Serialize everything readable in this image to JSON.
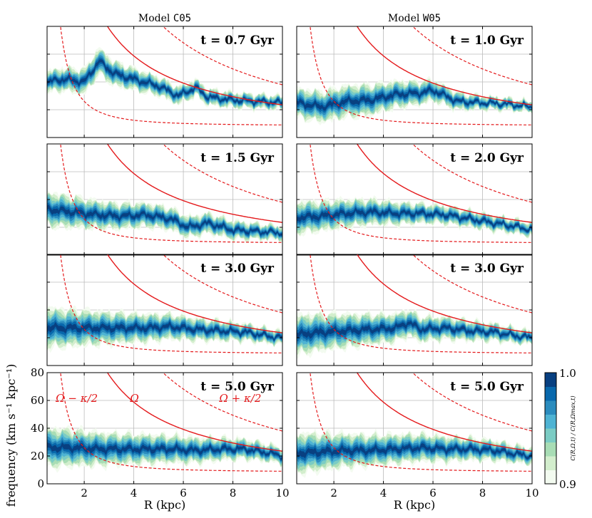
{
  "chart_data": {
    "type": "heatmap",
    "description_columns": [
      {
        "title_prefix": "Model ",
        "model": "C05"
      },
      {
        "title_prefix": "Model ",
        "model": "W05"
      }
    ],
    "xlabel": "R  (kpc)",
    "ylabel": "frequency (km s⁻¹ kpc⁻¹)",
    "xlim": [
      0.5,
      10
    ],
    "ylim": [
      0,
      80
    ],
    "xticks": [
      "2",
      "4",
      "6",
      "8",
      "10"
    ],
    "yticks": [
      "0",
      "20",
      "40",
      "60",
      "80"
    ],
    "colorbar": {
      "label": "C(R,Ω,t) / C(R,Ωmax,t)",
      "min_label": "0.9",
      "max_label": "1.0",
      "colors": [
        "#f3fbf0",
        "#d3eecd",
        "#a8ddb5",
        "#7bccc4",
        "#4eb3d3",
        "#2b8cbe",
        "#0868ac",
        "#084081"
      ]
    },
    "curve_colors": {
      "omega": "#e41a1c",
      "ilr_olr": "#e41a1c"
    },
    "annotations": {
      "ilr": "Ω − κ/2",
      "omega": "Ω",
      "olr": "Ω + κ/2"
    },
    "panels": [
      {
        "col": 0,
        "row": 0,
        "label": "t = 0.7 Gyr",
        "ridge": [
          [
            0.5,
            40
          ],
          [
            1.2,
            42
          ],
          [
            2.0,
            40
          ],
          [
            2.6,
            55
          ],
          [
            3.2,
            46
          ],
          [
            4.0,
            42
          ],
          [
            5.0,
            37
          ],
          [
            5.8,
            30
          ],
          [
            6.5,
            36
          ],
          [
            7.0,
            29
          ],
          [
            8.0,
            27
          ],
          [
            9.0,
            26
          ],
          [
            10.0,
            25
          ]
        ],
        "width": [
          [
            0.5,
            8
          ],
          [
            2.6,
            10
          ],
          [
            5.0,
            7
          ],
          [
            7.0,
            6
          ],
          [
            10.0,
            5
          ]
        ]
      },
      {
        "col": 1,
        "row": 0,
        "label": "t = 1.0 Gyr",
        "ridge": [
          [
            0.5,
            25
          ],
          [
            1.5,
            22
          ],
          [
            2.5,
            26
          ],
          [
            3.5,
            27
          ],
          [
            4.5,
            31
          ],
          [
            5.5,
            32
          ],
          [
            6.0,
            34
          ],
          [
            7.0,
            26
          ],
          [
            8.0,
            25
          ],
          [
            9.0,
            24
          ],
          [
            10.0,
            22
          ]
        ],
        "width": [
          [
            0.5,
            11
          ],
          [
            3.0,
            12
          ],
          [
            6.0,
            8
          ],
          [
            8.0,
            5
          ],
          [
            10.0,
            4
          ]
        ]
      },
      {
        "col": 0,
        "row": 1,
        "label": "t = 1.5 Gyr",
        "ridge": [
          [
            0.5,
            33
          ],
          [
            1.5,
            31
          ],
          [
            2.5,
            29
          ],
          [
            3.5,
            28
          ],
          [
            4.5,
            29
          ],
          [
            5.5,
            26
          ],
          [
            6.2,
            20
          ],
          [
            7.0,
            23
          ],
          [
            8.0,
            18
          ],
          [
            9.0,
            17
          ],
          [
            10.0,
            16
          ]
        ],
        "width": [
          [
            0.5,
            13
          ],
          [
            3.0,
            10
          ],
          [
            6.0,
            8
          ],
          [
            8.0,
            7
          ],
          [
            10.0,
            5
          ]
        ]
      },
      {
        "col": 1,
        "row": 1,
        "label": "t = 2.0 Gyr",
        "ridge": [
          [
            0.5,
            27
          ],
          [
            1.5,
            28
          ],
          [
            2.5,
            30
          ],
          [
            3.5,
            31
          ],
          [
            4.5,
            30
          ],
          [
            5.5,
            30
          ],
          [
            6.5,
            29
          ],
          [
            7.5,
            26
          ],
          [
            8.5,
            23
          ],
          [
            9.5,
            20
          ],
          [
            10.0,
            18
          ]
        ],
        "width": [
          [
            0.5,
            12
          ],
          [
            3.0,
            10
          ],
          [
            6.0,
            7
          ],
          [
            8.0,
            6
          ],
          [
            10.0,
            5
          ]
        ]
      },
      {
        "col": 0,
        "row": 2,
        "label": "t = 3.0 Gyr",
        "ridge": [
          [
            0.5,
            27
          ],
          [
            1.5,
            27
          ],
          [
            2.5,
            27
          ],
          [
            3.5,
            27
          ],
          [
            4.5,
            27
          ],
          [
            5.5,
            28
          ],
          [
            6.5,
            26
          ],
          [
            7.5,
            25
          ],
          [
            8.5,
            24
          ],
          [
            9.5,
            21
          ],
          [
            10.0,
            20
          ]
        ],
        "width": [
          [
            0.5,
            15
          ],
          [
            3.0,
            12
          ],
          [
            6.0,
            9
          ],
          [
            8.0,
            7
          ],
          [
            10.0,
            5
          ]
        ]
      },
      {
        "col": 1,
        "row": 2,
        "label": "t = 3.0 Gyr",
        "ridge": [
          [
            0.5,
            22
          ],
          [
            1.5,
            24
          ],
          [
            2.5,
            25
          ],
          [
            3.5,
            26
          ],
          [
            4.5,
            27
          ],
          [
            5.0,
            31
          ],
          [
            5.5,
            26
          ],
          [
            6.5,
            27
          ],
          [
            7.5,
            25
          ],
          [
            8.5,
            24
          ],
          [
            9.5,
            21
          ],
          [
            10.0,
            20
          ]
        ],
        "width": [
          [
            0.5,
            15
          ],
          [
            3.0,
            12
          ],
          [
            6.0,
            9
          ],
          [
            8.0,
            7
          ],
          [
            10.0,
            5
          ]
        ]
      },
      {
        "col": 0,
        "row": 3,
        "label": "t = 5.0 Gyr",
        "ridge": [
          [
            0.5,
            26
          ],
          [
            1.5,
            26
          ],
          [
            2.5,
            25
          ],
          [
            3.5,
            25
          ],
          [
            4.5,
            25
          ],
          [
            5.5,
            25
          ],
          [
            6.5,
            24
          ],
          [
            7.5,
            25
          ],
          [
            8.5,
            25
          ],
          [
            9.5,
            22
          ],
          [
            10.0,
            20
          ]
        ],
        "width": [
          [
            0.5,
            15
          ],
          [
            3.0,
            12
          ],
          [
            6.0,
            10
          ],
          [
            8.0,
            8
          ],
          [
            10.0,
            6
          ]
        ]
      },
      {
        "col": 1,
        "row": 3,
        "label": "t = 5.0 Gyr",
        "ridge": [
          [
            0.5,
            22
          ],
          [
            1.5,
            23
          ],
          [
            2.5,
            24
          ],
          [
            3.5,
            24
          ],
          [
            4.5,
            25
          ],
          [
            5.5,
            26
          ],
          [
            6.5,
            25
          ],
          [
            7.5,
            25
          ],
          [
            8.5,
            24
          ],
          [
            9.5,
            21
          ],
          [
            10.0,
            20
          ]
        ],
        "width": [
          [
            0.5,
            15
          ],
          [
            3.0,
            12
          ],
          [
            6.0,
            10
          ],
          [
            8.0,
            8
          ],
          [
            10.0,
            6
          ]
        ]
      }
    ]
  }
}
